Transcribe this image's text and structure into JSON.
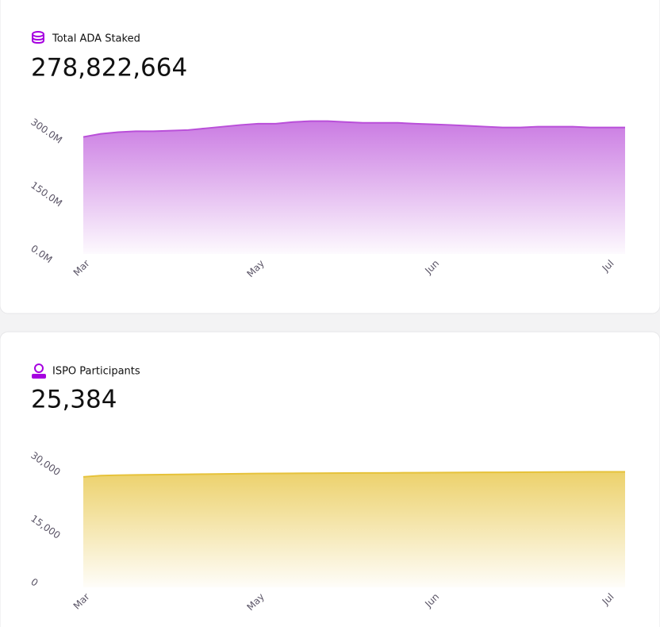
{
  "chart_data": [
    {
      "type": "area",
      "title": "Total ADA Staked",
      "headline": "278,822,664",
      "categories": [
        "Mar",
        null,
        null,
        null,
        null,
        null,
        null,
        null,
        null,
        null,
        "May",
        null,
        null,
        null,
        null,
        null,
        null,
        null,
        null,
        null,
        "Jun",
        null,
        null,
        null,
        null,
        null,
        null,
        null,
        null,
        null,
        "Jul",
        null
      ],
      "values": [
        277500000,
        285000000,
        289000000,
        291000000,
        291000000,
        292500000,
        294000000,
        298000000,
        302000000,
        306000000,
        309000000,
        309000000,
        313000000,
        315000000,
        315000000,
        313000000,
        311000000,
        311000000,
        311000000,
        309000000,
        307500000,
        306000000,
        304000000,
        302000000,
        300000000,
        300000000,
        302000000,
        302000000,
        302000000,
        300000000,
        300000000,
        300000000
      ],
      "color": "#b94fd9",
      "ylim": [
        0,
        320000000
      ],
      "yticks": [
        {
          "value": 0,
          "label": "0.0M"
        },
        {
          "value": 150000000,
          "label": "150.0M"
        },
        {
          "value": 300000000,
          "label": "300.0M"
        }
      ]
    },
    {
      "type": "area",
      "title": "ISPO Participants",
      "headline": "25,384",
      "categories": [
        "Mar",
        null,
        null,
        null,
        null,
        null,
        null,
        null,
        null,
        null,
        "May",
        null,
        null,
        null,
        null,
        null,
        null,
        null,
        null,
        null,
        "Jun",
        null,
        null,
        null,
        null,
        null,
        null,
        null,
        null,
        null,
        "Jul",
        null
      ],
      "values": [
        26200,
        26500,
        26600,
        26650,
        26700,
        26750,
        26800,
        26850,
        26900,
        26950,
        27000,
        27020,
        27040,
        27060,
        27080,
        27100,
        27120,
        27140,
        27160,
        27180,
        27200,
        27220,
        27240,
        27260,
        27280,
        27300,
        27320,
        27340,
        27360,
        27380,
        27390,
        27400
      ],
      "color": "#e6c23a",
      "ylim": [
        0,
        32000
      ],
      "yticks": [
        0,
        {
          "value": 15000,
          "label": "15,000"
        },
        {
          "value": 30000,
          "label": "30,000"
        }
      ]
    }
  ]
}
